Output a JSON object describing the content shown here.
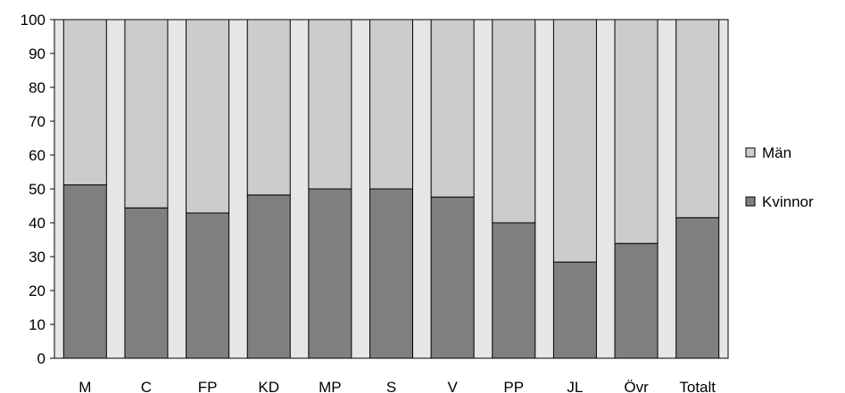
{
  "chart_data": {
    "type": "bar",
    "stacked": true,
    "percent": true,
    "categories": [
      "M",
      "C",
      "FP",
      "KD",
      "MP",
      "S",
      "V",
      "PP",
      "JL",
      "Övr",
      "Totalt"
    ],
    "series": [
      {
        "name": "Kvinnor",
        "color": "#7f7f7f",
        "values": [
          51.2,
          44.4,
          42.9,
          48.2,
          50.0,
          50.0,
          47.6,
          40.0,
          28.4,
          33.9,
          41.5
        ]
      },
      {
        "name": "Män",
        "color": "#cccccc",
        "values": [
          48.8,
          55.6,
          57.1,
          51.8,
          50.0,
          50.0,
          52.4,
          60.0,
          71.6,
          66.1,
          58.5
        ]
      }
    ],
    "ylim": [
      0,
      100
    ],
    "yticks": [
      "0",
      "10",
      "20",
      "30",
      "40",
      "50",
      "60",
      "70",
      "80",
      "90",
      "100"
    ],
    "xlabel": "",
    "ylabel": "",
    "grid": false,
    "legend_position": "right",
    "legend_order": [
      "Män",
      "Kvinnor"
    ],
    "plot_background": "#e6e6e6"
  }
}
